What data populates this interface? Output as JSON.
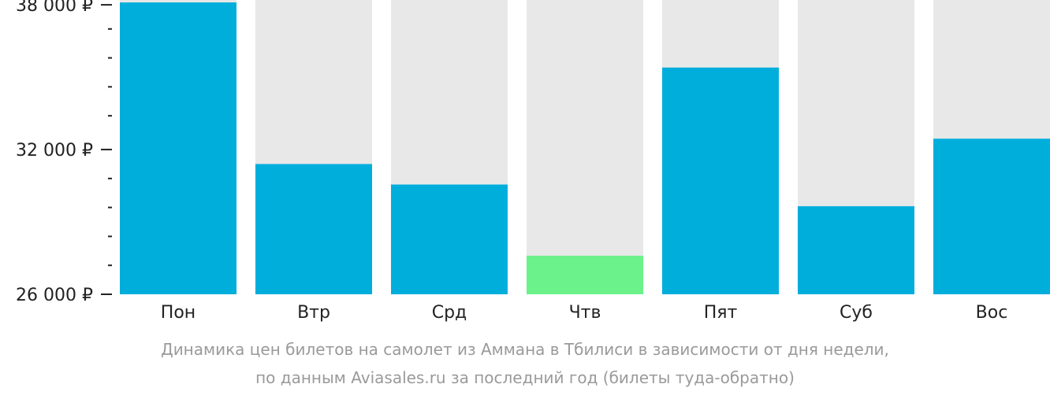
{
  "chart_data": {
    "type": "bar",
    "categories": [
      "Пон",
      "Втр",
      "Срд",
      "Чтв",
      "Пят",
      "Суб",
      "Вос"
    ],
    "values": [
      38100,
      31400,
      30550,
      27600,
      35400,
      29650,
      32450
    ],
    "ylim": [
      26000,
      38200
    ],
    "yticks": [
      {
        "value": 38000,
        "label": "38 000 ₽"
      },
      {
        "value": 32000,
        "label": "32 000 ₽"
      },
      {
        "value": 26000,
        "label": "26 000 ₽"
      }
    ],
    "minor_ticks": [
      37000,
      35800,
      34600,
      33400,
      30800,
      29600,
      28400,
      27200
    ],
    "min_highlight_index": 3,
    "colors": {
      "bar": "#00aedc",
      "bar_min": "#6cf28b",
      "bar_background": "#e8e8e8",
      "axis": "#222222"
    }
  },
  "caption": {
    "line1": "Динамика цен билетов на самолет из Аммана в Тбилиси в зависимости от дня недели,",
    "line2": "по данным Aviasales.ru за последний год (билеты туда-обратно)"
  }
}
